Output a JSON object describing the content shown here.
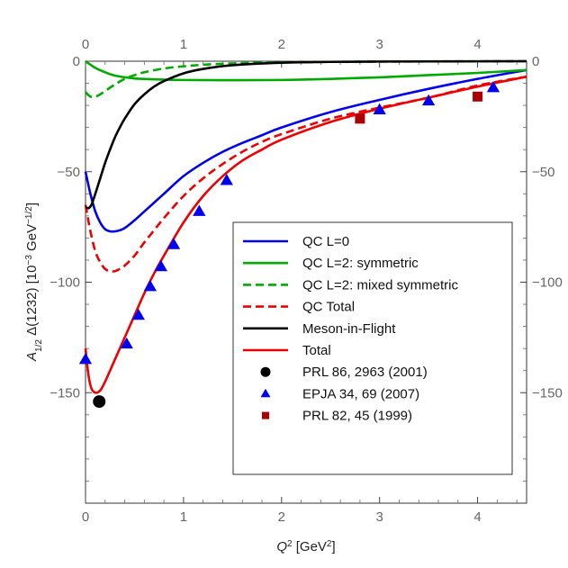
{
  "chart_data": {
    "type": "line",
    "xlabel": "Q2 [GeV2]",
    "ylabel": "A1/2 Δ(1232) [10−3 GeV−1/2]",
    "xlim": [
      0,
      4.5
    ],
    "ylim": [
      -200,
      0
    ],
    "xticks": [
      0,
      1,
      2,
      3,
      4
    ],
    "yticks": [
      0,
      -50,
      -100,
      -150
    ],
    "xtick_labels": [
      "0",
      "1",
      "2",
      "3",
      "4"
    ],
    "ytick_labels": [
      "0",
      "−50",
      "−100",
      "−150"
    ],
    "legend_position": "lower-right",
    "series": [
      {
        "name": "QC L=0",
        "color": "#0000ee",
        "dash": "solid",
        "x": [
          0,
          0.05,
          0.1,
          0.15,
          0.2,
          0.25,
          0.3,
          0.35,
          0.4,
          0.5,
          0.6,
          0.7,
          0.8,
          1.0,
          1.2,
          1.4,
          1.6,
          1.8,
          2.0,
          2.5,
          3.0,
          3.5,
          4.0,
          4.5
        ],
        "y": [
          -50,
          -60,
          -68,
          -73,
          -76,
          -77,
          -77,
          -76.5,
          -75.5,
          -72,
          -68,
          -64,
          -60,
          -52,
          -46,
          -41,
          -37,
          -33.5,
          -30,
          -23,
          -17.5,
          -12.5,
          -8,
          -4
        ]
      },
      {
        "name": "QC L=2: symmetric",
        "color": "#00aa00",
        "dash": "solid",
        "x": [
          0,
          0.1,
          0.2,
          0.3,
          0.5,
          0.8,
          1.0,
          1.5,
          2.0,
          2.5,
          3.0,
          3.5,
          4.0,
          4.5
        ],
        "y": [
          0,
          -3,
          -5,
          -6.5,
          -7.8,
          -8.3,
          -8.5,
          -8.6,
          -8.5,
          -8.0,
          -7.3,
          -6.3,
          -5.3,
          -4
        ]
      },
      {
        "name": "QC L=2: mixed symmetric",
        "color": "#00aa00",
        "dash": "dashed",
        "x": [
          0,
          0.05,
          0.1,
          0.15,
          0.2,
          0.3,
          0.4,
          0.5,
          0.6,
          0.8,
          1.0,
          1.2,
          1.5,
          2.0,
          2.5,
          3.0,
          3.5,
          4.0,
          4.5
        ],
        "y": [
          -14,
          -16,
          -16,
          -15,
          -13.5,
          -10.5,
          -8,
          -6.3,
          -5,
          -3.3,
          -2.3,
          -1.6,
          -1.0,
          -0.5,
          -0.3,
          -0.2,
          -0.1,
          -0.05,
          0
        ]
      },
      {
        "name": "QC Total",
        "color": "#ee0000",
        "dash": "dashed",
        "x": [
          0,
          0.05,
          0.1,
          0.15,
          0.2,
          0.25,
          0.3,
          0.35,
          0.4,
          0.5,
          0.6,
          0.7,
          0.8,
          1.0,
          1.2,
          1.4,
          1.6,
          1.8,
          2.0,
          2.5,
          3.0,
          3.5,
          4.0,
          4.5
        ],
        "y": [
          -65,
          -77,
          -86,
          -91,
          -94,
          -95,
          -95,
          -94,
          -92.5,
          -88,
          -82,
          -76.5,
          -71,
          -61,
          -53,
          -46.5,
          -41,
          -36.5,
          -33,
          -26,
          -21,
          -16.5,
          -11,
          -7
        ]
      },
      {
        "name": "Meson-in-Flight",
        "color": "#000000",
        "dash": "solid",
        "x": [
          0,
          0.03,
          0.06,
          0.1,
          0.15,
          0.2,
          0.25,
          0.3,
          0.35,
          0.4,
          0.5,
          0.6,
          0.7,
          0.8,
          1.0,
          1.2,
          1.5,
          2.0,
          2.5,
          3.0,
          3.5,
          4.0,
          4.5
        ],
        "y": [
          -66,
          -66.5,
          -65,
          -60,
          -53,
          -46,
          -40,
          -34.5,
          -30,
          -26,
          -19.5,
          -15,
          -11.5,
          -9,
          -5.5,
          -3.5,
          -1.8,
          -0.7,
          -0.3,
          -0.15,
          -0.1,
          -0.05,
          0
        ]
      },
      {
        "name": "Total",
        "color": "#ee0000",
        "dash": "solid",
        "x": [
          0,
          0.03,
          0.06,
          0.1,
          0.15,
          0.2,
          0.3,
          0.4,
          0.5,
          0.6,
          0.7,
          0.8,
          1.0,
          1.2,
          1.4,
          1.6,
          1.8,
          2.0,
          2.5,
          3.0,
          3.5,
          4.0,
          4.5
        ],
        "y": [
          -130,
          -142,
          -148,
          -150,
          -149,
          -145,
          -135,
          -125,
          -115,
          -105,
          -96,
          -88,
          -73,
          -61,
          -52,
          -45,
          -40,
          -35.5,
          -27.5,
          -21.5,
          -16.5,
          -11.5,
          -7
        ]
      }
    ],
    "markers": [
      {
        "name": "PRL 86, 2963 (2001)",
        "shape": "circle",
        "color": "#000000",
        "x": [
          0.14
        ],
        "y": [
          -154
        ]
      },
      {
        "name": "EPJA 34, 69 (2007)",
        "shape": "triangle",
        "color": "#0000ee",
        "x": [
          0.0,
          0.42,
          0.54,
          0.66,
          0.77,
          0.9,
          1.16,
          1.44,
          3.0,
          3.5,
          4.16
        ],
        "y": [
          -135,
          -128,
          -115,
          -102,
          -93,
          -83,
          -68,
          -54,
          -22,
          -18,
          -12
        ]
      },
      {
        "name": "PRL 82, 45 (1999)",
        "shape": "square",
        "color": "#aa0000",
        "x": [
          2.8,
          4.0
        ],
        "y": [
          -26,
          -16
        ]
      }
    ]
  }
}
